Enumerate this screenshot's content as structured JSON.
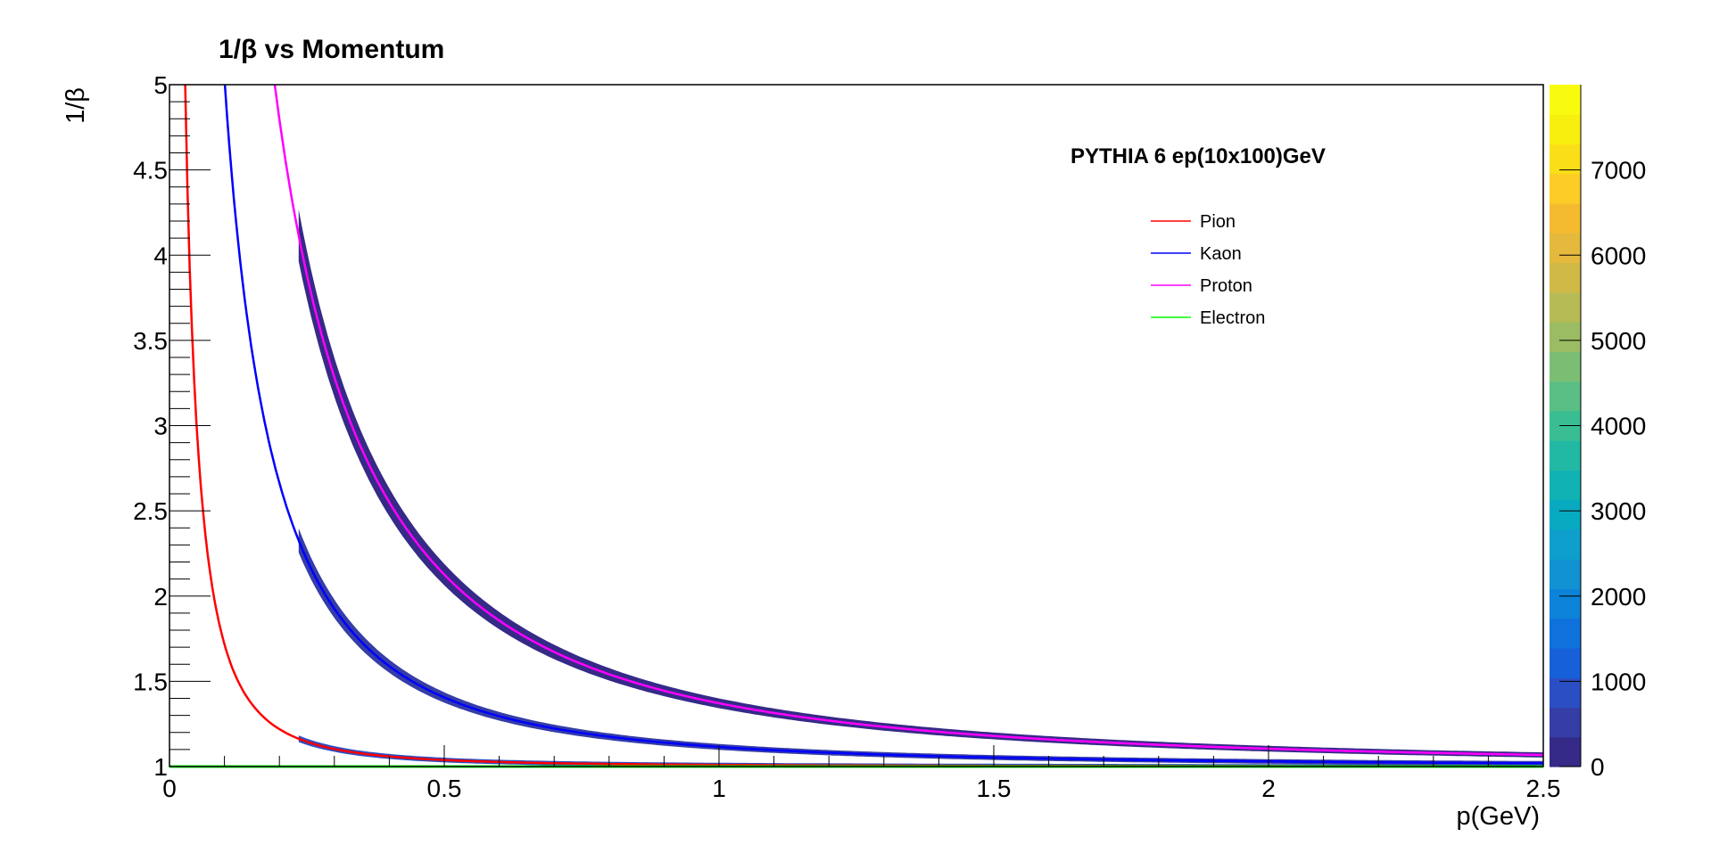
{
  "chart_data": {
    "type": "heatmap",
    "title": "1/β vs Momentum",
    "xlabel": "p(GeV)",
    "ylabel": "1/β",
    "xlim": [
      0,
      2.5
    ],
    "ylim": [
      1,
      5
    ],
    "x_ticks": [
      {
        "value": 0,
        "label": "0"
      },
      {
        "value": 0.5,
        "label": "0.5"
      },
      {
        "value": 1,
        "label": "1"
      },
      {
        "value": 1.5,
        "label": "1.5"
      },
      {
        "value": 2,
        "label": "2"
      },
      {
        "value": 2.5,
        "label": "2.5"
      }
    ],
    "y_ticks": [
      {
        "value": 1,
        "label": "1"
      },
      {
        "value": 1.5,
        "label": "1.5"
      },
      {
        "value": 2,
        "label": "2"
      },
      {
        "value": 2.5,
        "label": "2.5"
      },
      {
        "value": 3,
        "label": "3"
      },
      {
        "value": 3.5,
        "label": "3.5"
      },
      {
        "value": 4,
        "label": "4"
      },
      {
        "value": 4.5,
        "label": "4.5"
      },
      {
        "value": 5,
        "label": "5"
      }
    ],
    "colorbar": {
      "range": [
        0,
        8000
      ],
      "ticks": [
        {
          "value": 0,
          "label": "0"
        },
        {
          "value": 1000,
          "label": "1000"
        },
        {
          "value": 2000,
          "label": "2000"
        },
        {
          "value": 3000,
          "label": "3000"
        },
        {
          "value": 4000,
          "label": "4000"
        },
        {
          "value": 5000,
          "label": "5000"
        },
        {
          "value": 6000,
          "label": "6000"
        },
        {
          "value": 7000,
          "label": "7000"
        }
      ],
      "colors": [
        "#352a87",
        "#353da6",
        "#2a4fc4",
        "#1661d9",
        "#0f72dc",
        "#0c82d8",
        "#1192d2",
        "#0f9fcc",
        "#07aac1",
        "#10b2b4",
        "#22b9a4",
        "#39be93",
        "#59bf84",
        "#7bbe73",
        "#9bbc62",
        "#b7bb55",
        "#d0b947",
        "#e4b93d",
        "#f4bb30",
        "#fccc27",
        "#fade18",
        "#f7f00f",
        "#f9fb0e"
      ]
    },
    "annotation": "PYTHIA 6 ep(10x100)GeV",
    "legend_position": "top-right",
    "series": [
      {
        "name": "Pion",
        "mass": 0.1396,
        "color": "#ff0000"
      },
      {
        "name": "Kaon",
        "mass": 0.4937,
        "color": "#0000ff"
      },
      {
        "name": "Proton",
        "mass": 0.9383,
        "color": "#ff00ff"
      },
      {
        "name": "Electron",
        "mass": 0.000511,
        "color": "#00ff00"
      }
    ],
    "density_bands": [
      {
        "name": "Pion",
        "mass": 0.1396,
        "p_range": [
          0.235,
          2.5
        ],
        "level": 900
      },
      {
        "name": "Kaon",
        "mass": 0.4937,
        "p_range": [
          0.235,
          2.5
        ],
        "level": 400
      },
      {
        "name": "Proton",
        "mass": 0.9383,
        "p_range": [
          0.235,
          2.5
        ],
        "level": 250
      }
    ],
    "grid": false
  }
}
